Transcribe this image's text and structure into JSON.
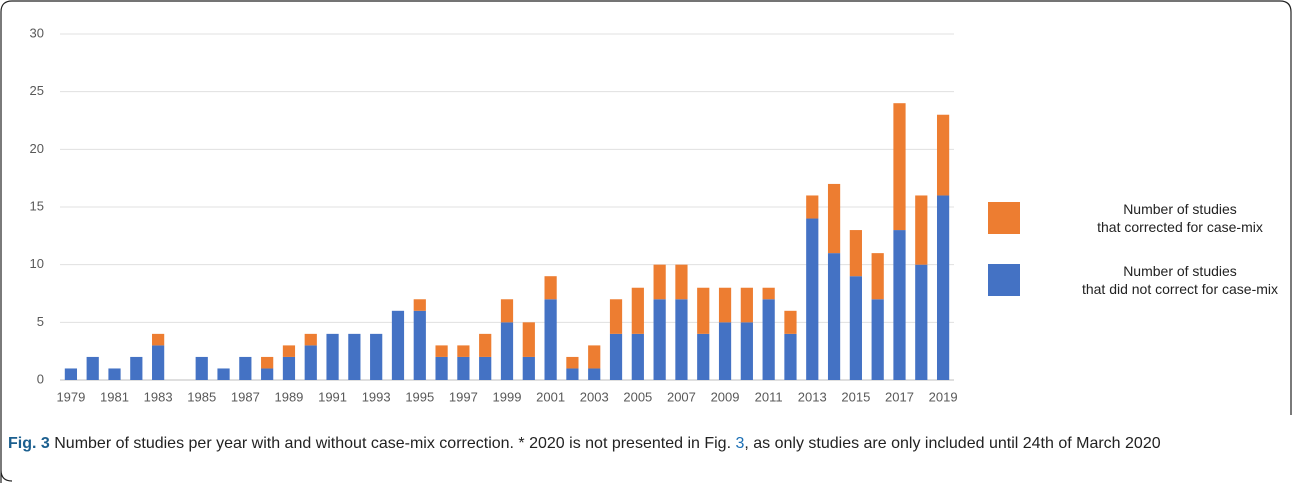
{
  "chart_data": {
    "type": "stacked-bar",
    "categories": [
      "1979",
      null,
      "1981",
      null,
      "1983",
      null,
      "1985",
      null,
      "1987",
      null,
      "1989",
      null,
      "1991",
      null,
      "1993",
      null,
      "1995",
      null,
      "1997",
      null,
      "1999",
      null,
      "2001",
      null,
      "2003",
      null,
      "2005",
      null,
      "2007",
      null,
      "2009",
      null,
      "2011",
      null,
      "2013",
      null,
      "2015",
      null,
      "2017",
      null,
      "2019"
    ],
    "series": [
      {
        "name": "Number of studies that did not correct for case-mix",
        "color": "#4472c4",
        "values": [
          1,
          2,
          1,
          2,
          3,
          0,
          2,
          1,
          2,
          1,
          2,
          3,
          4,
          4,
          4,
          6,
          6,
          2,
          2,
          2,
          5,
          2,
          7,
          1,
          1,
          4,
          4,
          7,
          7,
          4,
          5,
          5,
          7,
          4,
          14,
          11,
          9,
          7,
          13,
          10,
          16
        ]
      },
      {
        "name": "Number of studies that corrected for case-mix",
        "color": "#ed7d31",
        "values": [
          0,
          0,
          0,
          0,
          1,
          0,
          0,
          0,
          0,
          1,
          1,
          1,
          0,
          0,
          0,
          0,
          1,
          1,
          1,
          2,
          2,
          3,
          2,
          1,
          2,
          3,
          4,
          3,
          3,
          4,
          3,
          3,
          1,
          2,
          2,
          6,
          4,
          4,
          11,
          6,
          7
        ]
      }
    ],
    "ylim": [
      0,
      30
    ],
    "yticks": [
      0,
      5,
      10,
      15,
      20,
      25,
      30
    ],
    "grid": true
  },
  "caption": {
    "label": "Fig. 3",
    "text": [
      "Number of studies per year with and without case-mix correction. * 2020 is not presented in Fig. ",
      "3",
      ", as only studies are only included until 24th of March 2020"
    ]
  }
}
